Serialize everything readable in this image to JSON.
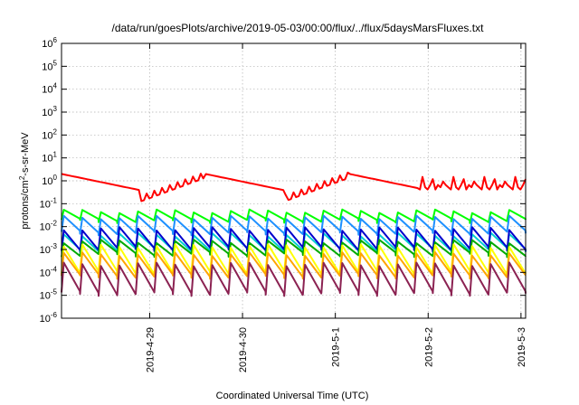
{
  "chart_data": {
    "type": "line",
    "title": "/data/run/goesPlots/archive/2019-05-03/00:00/flux/../flux/5daysMarsFluxes.txt",
    "xlabel": "Coordinated Universal Time (UTC)",
    "ylabel_prefix": "protons/cm",
    "ylabel_sup": "2",
    "ylabel_suffix": "-s-sr-MeV",
    "yscale": "log",
    "ylim_exp": [
      -6,
      6
    ],
    "y_ticks": [
      {
        "base": "10",
        "exp": "6"
      },
      {
        "base": "10",
        "exp": "5"
      },
      {
        "base": "10",
        "exp": "4"
      },
      {
        "base": "10",
        "exp": "3"
      },
      {
        "base": "10",
        "exp": "2"
      },
      {
        "base": "10",
        "exp": "1"
      },
      {
        "base": "10",
        "exp": "0"
      },
      {
        "base": "10",
        "exp": "-1"
      },
      {
        "base": "10",
        "exp": "-2"
      },
      {
        "base": "10",
        "exp": "-3"
      },
      {
        "base": "10",
        "exp": "-4"
      },
      {
        "base": "10",
        "exp": "-5"
      },
      {
        "base": "10",
        "exp": "-6"
      }
    ],
    "xlim_days": [
      -1.95,
      3.05
    ],
    "x_ticks": [
      {
        "label": "2019-4-29",
        "day": -1
      },
      {
        "label": "2019-4-30",
        "day": 0
      },
      {
        "label": "2019-5-1",
        "day": 1
      },
      {
        "label": "2019-5-2",
        "day": 2
      },
      {
        "label": "2019-5-3",
        "day": 3
      }
    ],
    "grid": true,
    "series": [
      {
        "color": "#ff0000",
        "base": 0.0,
        "amp": 0.35,
        "drift": 0.0,
        "kind": "slow"
      },
      {
        "color": "#00ff00",
        "base": -1.55,
        "amp": 0.22,
        "drift": 0.0,
        "kind": "saw"
      },
      {
        "color": "#1e90ff",
        "base": -1.95,
        "amp": 0.35,
        "drift": 0.0,
        "kind": "saw"
      },
      {
        "color": "#00ced1",
        "base": -2.7,
        "amp": 0.35,
        "drift": 0.0,
        "kind": "saw"
      },
      {
        "color": "#0000cd",
        "base": -2.55,
        "amp": 0.45,
        "drift": 0.0,
        "kind": "saw"
      },
      {
        "color": "#00aa00",
        "base": -2.95,
        "amp": 0.3,
        "drift": 0.0,
        "kind": "saw"
      },
      {
        "color": "#ffff00",
        "base": -3.45,
        "amp": 0.6,
        "drift": 0.0,
        "kind": "saw"
      },
      {
        "color": "#ffa500",
        "base": -3.7,
        "amp": 0.5,
        "drift": 0.0,
        "kind": "saw"
      },
      {
        "color": "#8b2252",
        "base": -4.3,
        "amp": 0.65,
        "drift": 0.0,
        "kind": "saw"
      }
    ]
  }
}
